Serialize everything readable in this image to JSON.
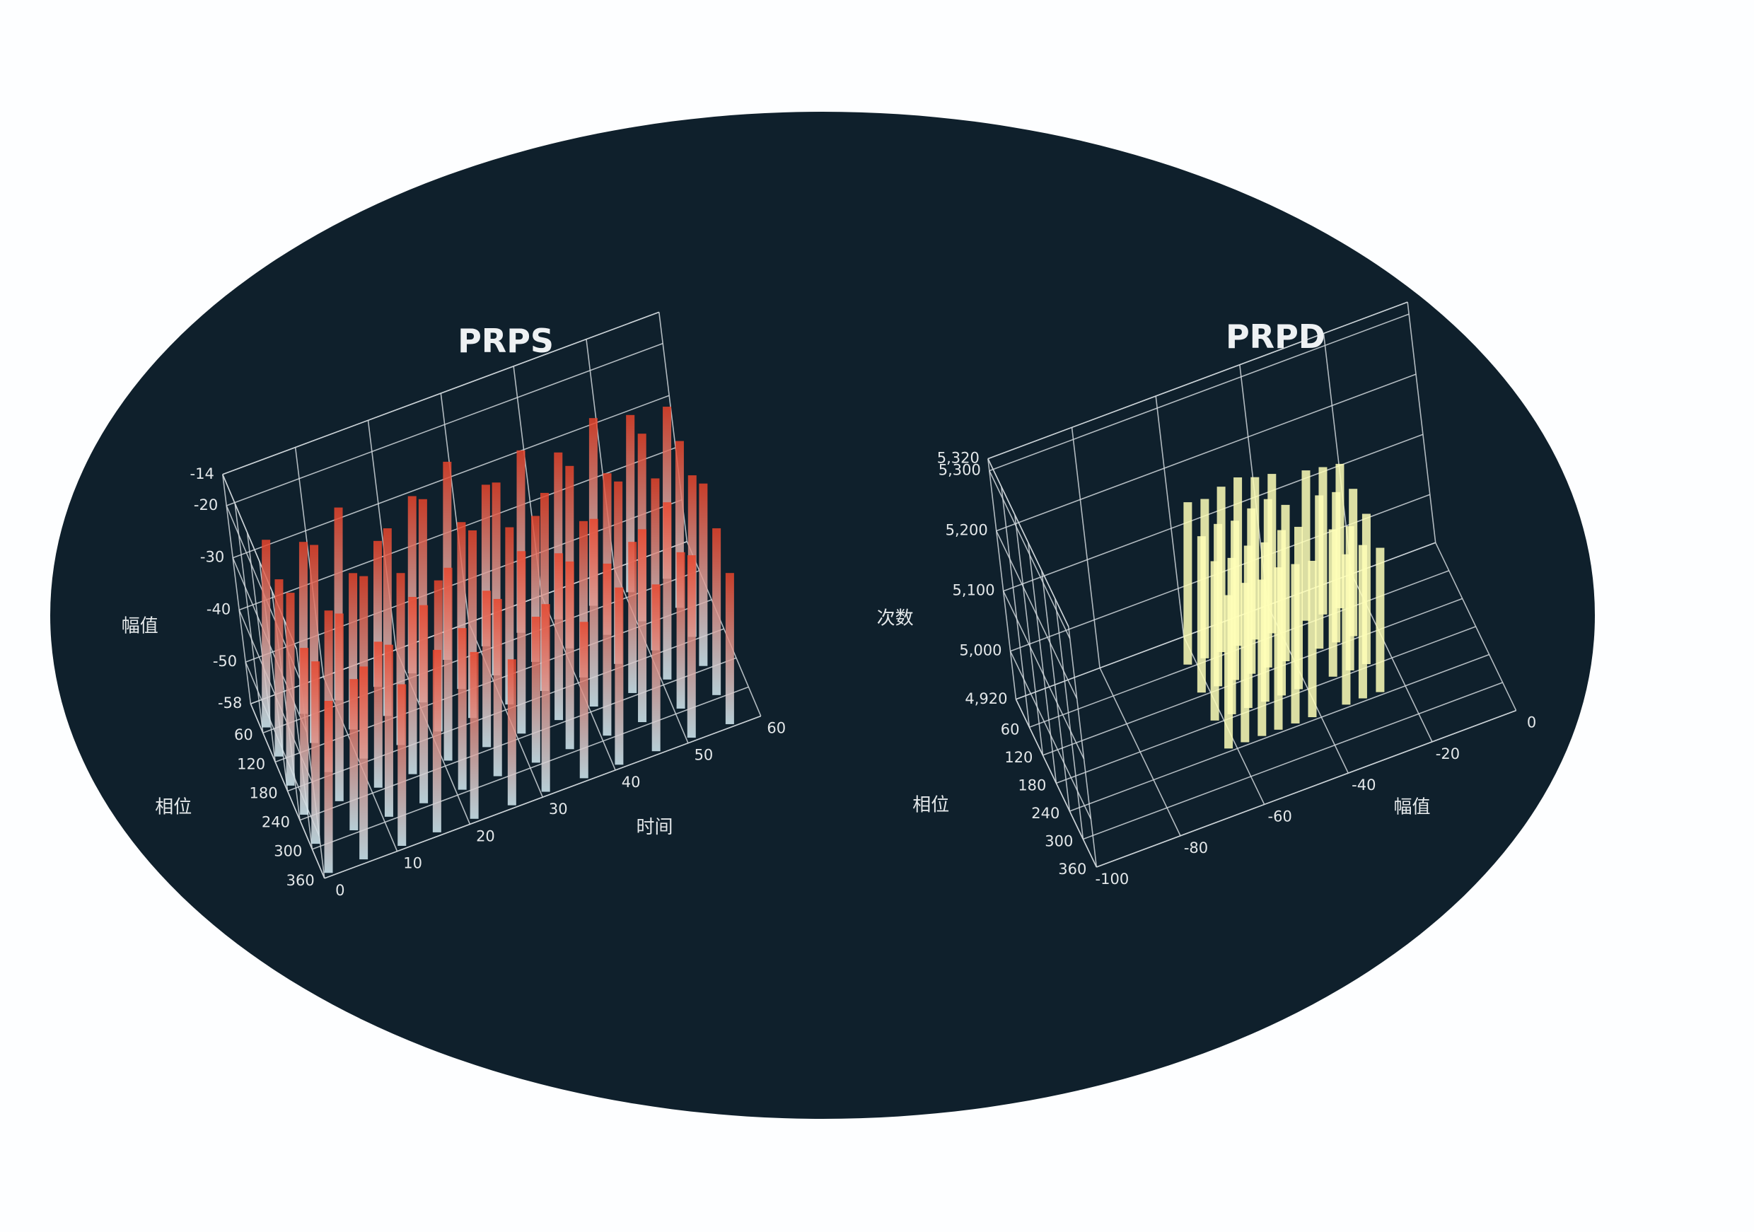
{
  "chart_data": [
    {
      "type": "bar3d",
      "title": "PRPS",
      "xlabel": "时间",
      "ylabel": "相位",
      "zlabel": "幅值",
      "color": "#e8432a",
      "base_color": "#d4ecf4",
      "x": [
        2,
        7,
        12,
        17,
        22,
        27,
        32,
        37,
        42,
        47,
        52,
        57
      ],
      "y": [
        60,
        120,
        180,
        240,
        300,
        360
      ],
      "values": [
        [
          -22,
          -25,
          -21,
          -30,
          -24,
          -20,
          -27,
          -23,
          -26,
          -22,
          -24,
          -25
        ],
        [
          -24,
          -20,
          -28,
          -22,
          -19,
          -26,
          -21,
          -30,
          -23,
          -27,
          -22,
          -26
        ],
        [
          -21,
          -27,
          -23,
          -25,
          -29,
          -22,
          -24,
          -20,
          -28,
          -23,
          -25,
          -27
        ],
        [
          -26,
          -22,
          -30,
          -24,
          -21,
          -28,
          -23,
          -26,
          -22,
          -29,
          -24,
          -23
        ],
        [
          -23,
          -29,
          -25,
          -20,
          -27,
          -24,
          -30,
          -22,
          -25,
          -21,
          -28,
          -26
        ],
        [
          -25,
          -21,
          -27,
          -23,
          -26,
          -30,
          -22,
          -28,
          -24,
          -26,
          -23,
          -29
        ]
      ],
      "xlim": [
        0,
        60
      ],
      "xticks": [
        0,
        10,
        20,
        30,
        40,
        50,
        60
      ],
      "ylim": [
        0,
        360
      ],
      "yticks": [
        60,
        120,
        180,
        240,
        300,
        360
      ],
      "zlim": [
        -58,
        -14
      ],
      "zticks": [
        -14,
        -20,
        -30,
        -40,
        -50,
        -58
      ],
      "grid": true
    },
    {
      "type": "bar3d",
      "title": "PRPD",
      "xlabel": "幅值",
      "ylabel": "相位",
      "zlabel": "次数",
      "color": "#ffffb8",
      "base_color": "#ffffb8",
      "x": [
        -60,
        -56,
        -52,
        -48,
        -44,
        -40,
        -36,
        -32,
        -28,
        -24
      ],
      "y": [
        60,
        120,
        180,
        240
      ],
      "values": [
        [
          5190,
          5185,
          5195,
          5200,
          5190,
          5185,
          null,
          5170,
          5165,
          5160
        ],
        [
          5180,
          5190,
          5185,
          5195,
          5200,
          5180,
          null,
          5175,
          5170,
          5165
        ],
        [
          5185,
          5180,
          5190,
          5185,
          5195,
          5190,
          null,
          5165,
          5160,
          5170
        ],
        [
          5175,
          5185,
          5180,
          5190,
          5185,
          5180,
          null,
          5170,
          5175,
          5160
        ]
      ],
      "xlim": [
        -100,
        0
      ],
      "xticks": [
        -100,
        -80,
        -60,
        -40,
        -20,
        0
      ],
      "ylim": [
        0,
        360
      ],
      "yticks": [
        60,
        120,
        180,
        240,
        300,
        360
      ],
      "zlim": [
        4920,
        5320
      ],
      "zticks": [
        {
          "value": 4920,
          "label": "4,920"
        },
        {
          "value": 5000,
          "label": "5,000"
        },
        {
          "value": 5100,
          "label": "5,100"
        },
        {
          "value": 5200,
          "label": "5,200"
        },
        {
          "value": 5300,
          "label": "5,300"
        },
        {
          "value": 5320,
          "label": "5,320"
        }
      ],
      "grid": true
    }
  ]
}
